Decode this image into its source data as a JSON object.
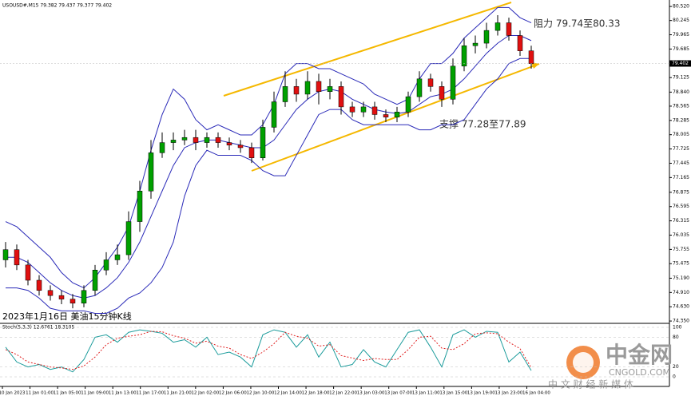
{
  "chart_data": {
    "type": "candlestick",
    "title": "USOUSD#,M15  79.382 79.437 79.377 79.402",
    "caption": "2023年1月16日 美油15分钟K线",
    "open": [
      75.55,
      75.75,
      75.45,
      75.15,
      74.95,
      74.85,
      74.78,
      74.7,
      74.95,
      75.35,
      75.55,
      75.65,
      76.3,
      76.9,
      77.65,
      77.85,
      77.9,
      77.95,
      77.85,
      77.95,
      77.85,
      77.8,
      77.75,
      77.55,
      78.15,
      78.65,
      78.95,
      78.8,
      79.05,
      78.85,
      78.95,
      78.55,
      78.45,
      78.55,
      78.4,
      78.35,
      78.45,
      78.75,
      79.1,
      78.95,
      78.7,
      79.35,
      79.75,
      79.8,
      80.05,
      80.2,
      79.95,
      79.65
    ],
    "high": [
      75.9,
      75.85,
      75.55,
      75.25,
      75.05,
      74.95,
      74.88,
      75.05,
      75.45,
      75.7,
      75.85,
      76.5,
      77.1,
      77.9,
      78.05,
      78.05,
      78.1,
      78.1,
      78.05,
      78.05,
      77.95,
      77.9,
      77.85,
      78.3,
      78.85,
      79.25,
      79.1,
      79.25,
      79.2,
      79.1,
      79.05,
      78.65,
      78.65,
      78.65,
      78.5,
      78.55,
      78.85,
      79.25,
      79.2,
      79.05,
      79.5,
      79.9,
      79.95,
      80.2,
      80.35,
      80.3,
      80.05,
      79.75
    ],
    "low": [
      75.4,
      75.35,
      75.05,
      74.85,
      74.75,
      74.68,
      74.6,
      74.62,
      74.85,
      75.25,
      75.45,
      75.55,
      76.1,
      76.75,
      77.55,
      77.7,
      77.8,
      77.7,
      77.75,
      77.75,
      77.7,
      77.65,
      77.45,
      77.5,
      78.05,
      78.55,
      78.65,
      78.7,
      78.6,
      78.7,
      78.4,
      78.35,
      78.35,
      78.3,
      78.25,
      78.25,
      78.35,
      78.65,
      78.85,
      78.55,
      78.6,
      79.25,
      79.6,
      79.7,
      79.95,
      79.85,
      79.55,
      79.3
    ],
    "close": [
      75.75,
      75.45,
      75.15,
      74.95,
      74.85,
      74.78,
      74.7,
      74.95,
      75.35,
      75.55,
      75.65,
      76.3,
      76.9,
      77.65,
      77.85,
      77.9,
      77.95,
      77.85,
      77.95,
      77.85,
      77.8,
      77.75,
      77.55,
      78.15,
      78.65,
      78.95,
      78.8,
      79.05,
      78.85,
      78.95,
      78.55,
      78.45,
      78.55,
      78.4,
      78.35,
      78.45,
      78.75,
      79.1,
      78.95,
      78.7,
      79.35,
      79.75,
      79.8,
      80.05,
      80.2,
      79.95,
      79.65,
      79.4
    ],
    "up_color": "#00a000",
    "down_color": "#e01010",
    "bands": {
      "color": "#2a2ab8",
      "upper": [
        76.3,
        76.2,
        76.0,
        75.8,
        75.6,
        75.3,
        75.1,
        75.0,
        75.2,
        75.5,
        75.8,
        76.2,
        76.9,
        77.7,
        78.4,
        78.9,
        78.7,
        78.3,
        78.1,
        78.2,
        78.1,
        78.0,
        78.0,
        78.2,
        78.6,
        79.2,
        79.4,
        79.4,
        79.3,
        79.3,
        79.2,
        79.1,
        79.0,
        78.8,
        78.7,
        78.6,
        78.7,
        79.1,
        79.4,
        79.4,
        79.6,
        79.9,
        80.1,
        80.3,
        80.5,
        80.5,
        80.3,
        80.2
      ],
      "middle": [
        75.6,
        75.6,
        75.5,
        75.3,
        75.1,
        74.95,
        74.85,
        74.8,
        74.85,
        75.0,
        75.2,
        75.5,
        75.9,
        76.4,
        76.9,
        77.4,
        77.75,
        77.85,
        77.9,
        77.9,
        77.85,
        77.8,
        77.75,
        77.75,
        77.9,
        78.2,
        78.5,
        78.7,
        78.85,
        78.9,
        78.85,
        78.7,
        78.6,
        78.5,
        78.45,
        78.42,
        78.45,
        78.6,
        78.75,
        78.8,
        78.9,
        79.1,
        79.35,
        79.6,
        79.8,
        79.95,
        79.95,
        79.85
      ],
      "lower": [
        75.0,
        75.0,
        74.95,
        74.8,
        74.6,
        74.55,
        74.55,
        74.55,
        74.5,
        74.5,
        74.6,
        74.8,
        74.9,
        75.1,
        75.4,
        75.9,
        76.8,
        77.4,
        77.7,
        77.6,
        77.6,
        77.6,
        77.5,
        77.3,
        77.2,
        77.2,
        77.6,
        78.0,
        78.4,
        78.5,
        78.5,
        78.3,
        78.2,
        78.2,
        78.2,
        78.2,
        78.2,
        78.1,
        78.1,
        78.2,
        78.2,
        78.3,
        78.6,
        78.9,
        79.1,
        79.4,
        79.5,
        79.5
      ]
    },
    "ylim": [
      74.32,
      80.6
    ],
    "yticks": [
      {
        "value": 80.52,
        "label": "80.520"
      },
      {
        "value": 80.245,
        "label": "80.245"
      },
      {
        "value": 79.965,
        "label": "79.965"
      },
      {
        "value": 79.685,
        "label": "79.685"
      },
      {
        "value": 79.125,
        "label": "79.125"
      },
      {
        "value": 78.84,
        "label": "78.840"
      },
      {
        "value": 78.565,
        "label": "78.565"
      },
      {
        "value": 78.285,
        "label": "78.285"
      },
      {
        "value": 78.005,
        "label": "78.005"
      },
      {
        "value": 77.725,
        "label": "77.725"
      },
      {
        "value": 77.445,
        "label": "77.445"
      },
      {
        "value": 77.165,
        "label": "77.165"
      },
      {
        "value": 76.875,
        "label": "76.875"
      },
      {
        "value": 76.595,
        "label": "76.595"
      },
      {
        "value": 76.315,
        "label": "76.315"
      },
      {
        "value": 76.035,
        "label": "76.035"
      },
      {
        "value": 75.755,
        "label": "75.755"
      },
      {
        "value": 75.475,
        "label": "75.475"
      },
      {
        "value": 75.19,
        "label": "75.190"
      },
      {
        "value": 74.91,
        "label": "74.910"
      },
      {
        "value": 74.63,
        "label": "74.630"
      },
      {
        "value": 74.35,
        "label": "74.350"
      }
    ],
    "last_price": {
      "value": 79.402,
      "label": "79.402"
    },
    "annotations": [
      {
        "text": "阻力 79.74至80.33"
      },
      {
        "text": "支撑 77.28至77.89"
      }
    ],
    "x_labels": [
      "10 Jan 2023",
      "11 Jan 01:00",
      "11 Jan 05:00",
      "11 Jan 09:00",
      "11 Jan 13:00",
      "11 Jan 17:00",
      "11 Jan 21:00",
      "12 Jan 02:00",
      "12 Jan 06:00",
      "12 Jan 10:00",
      "12 Jan 14:00",
      "12 Jan 18:00",
      "12 Jan 22:00",
      "13 Jan 03:00",
      "13 Jan 07:00",
      "13 Jan 11:00",
      "13 Jan 15:00",
      "13 Jan 19:00",
      "13 Jan 23:00",
      "16 Jan 04:00"
    ],
    "indicator": {
      "type": "line",
      "title": "Stoch(5,3,3) 12.6761 18.3105",
      "ylim": [
        0,
        100
      ],
      "yticks": [
        100,
        80,
        20,
        0
      ],
      "series": [
        {
          "color": "#1c9c9c",
          "values": [
            60,
            30,
            20,
            25,
            15,
            20,
            10,
            35,
            80,
            85,
            70,
            90,
            95,
            92,
            88,
            70,
            75,
            60,
            80,
            45,
            50,
            40,
            20,
            85,
            95,
            90,
            60,
            85,
            40,
            70,
            20,
            25,
            55,
            30,
            20,
            55,
            90,
            95,
            60,
            20,
            85,
            95,
            80,
            92,
            90,
            30,
            50,
            12.6761
          ]
        },
        {
          "color": "#e02020",
          "values": [
            55,
            45,
            30,
            25,
            20,
            18,
            15,
            22,
            40,
            65,
            78,
            82,
            85,
            92,
            91,
            83,
            78,
            68,
            72,
            62,
            58,
            45,
            37,
            50,
            67,
            90,
            82,
            78,
            62,
            65,
            43,
            38,
            33,
            37,
            35,
            35,
            55,
            80,
            82,
            58,
            55,
            67,
            87,
            89,
            87,
            70,
            57,
            18.3105
          ]
        }
      ]
    },
    "watermark": {
      "brand": "中金网",
      "site": "CNGOLD.COM",
      "slogan": "中 文 财 经 新 媒 体"
    }
  }
}
